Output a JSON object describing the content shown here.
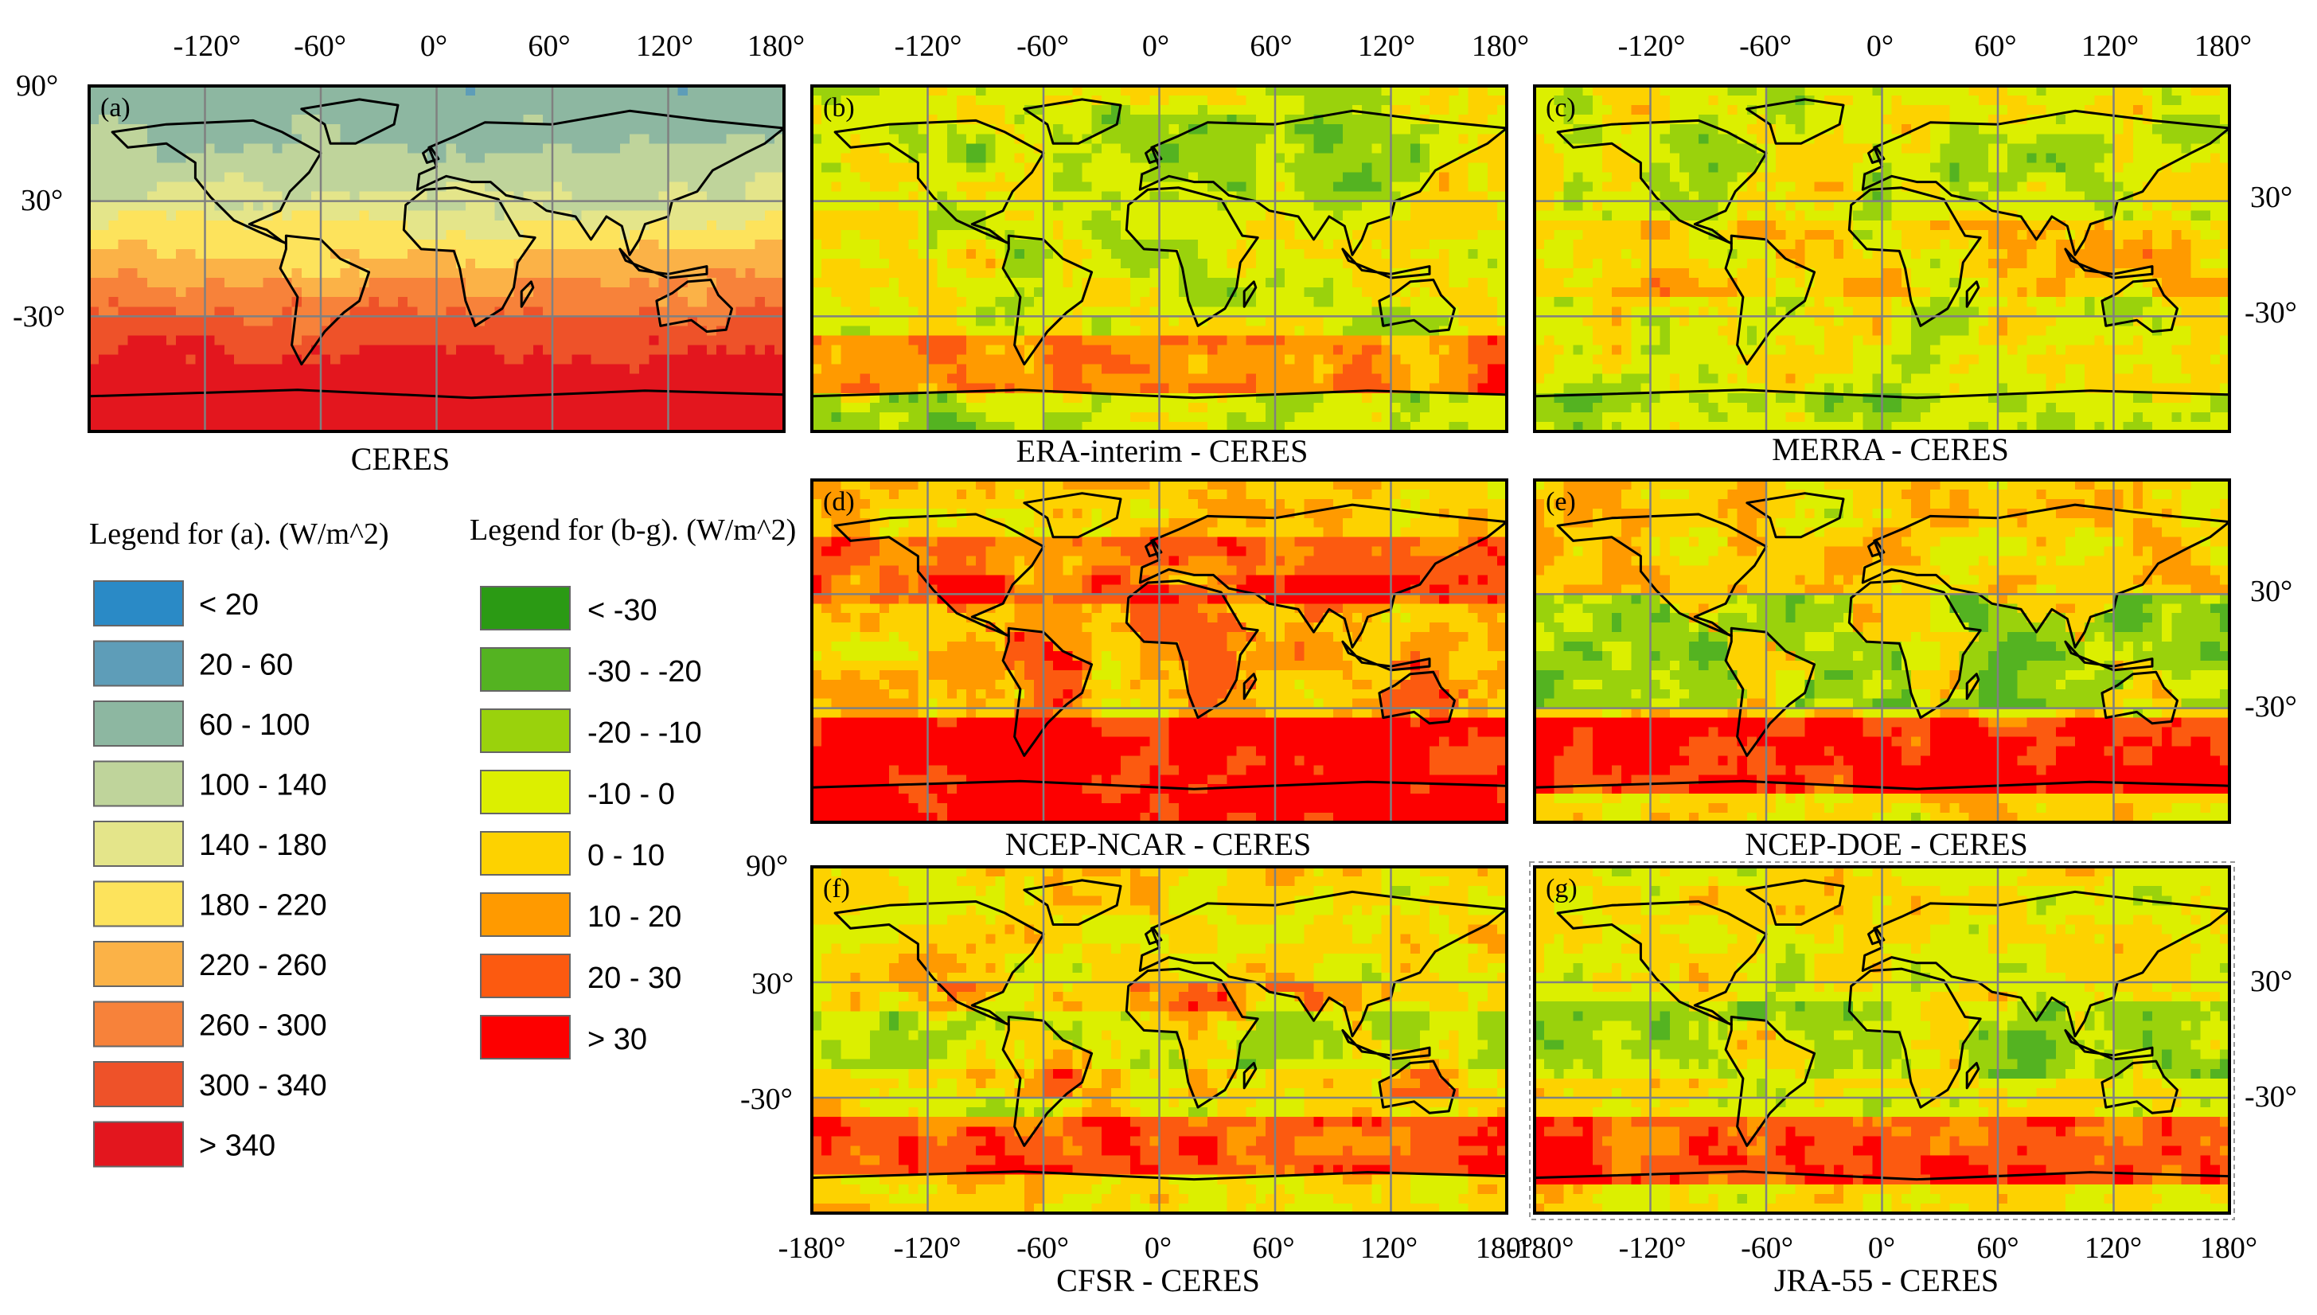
{
  "chart_data": {
    "type": "heatmap",
    "legend_a": {
      "title": "Legend for (a). (W/m^2)",
      "entries": [
        {
          "label": "< 20",
          "color": "#2a8ac6"
        },
        {
          "label": "20 - 60",
          "color": "#5e9db8"
        },
        {
          "label": "60 - 100",
          "color": "#8db7a1"
        },
        {
          "label": "100 - 140",
          "color": "#bfd49b"
        },
        {
          "label": "140 - 180",
          "color": "#e4e58a"
        },
        {
          "label": "180 - 220",
          "color": "#fde35c"
        },
        {
          "label": "220 - 260",
          "color": "#fbb247"
        },
        {
          "label": "260 - 300",
          "color": "#f7823a"
        },
        {
          "label": "300 - 340",
          "color": "#ee5229"
        },
        {
          "label": "> 340",
          "color": "#e3161e"
        }
      ]
    },
    "legend_bg": {
      "title": "Legend for (b-g). (W/m^2)",
      "entries": [
        {
          "label": "< -30",
          "color": "#2b9a14"
        },
        {
          "label": "-30 - -20",
          "color": "#54b321"
        },
        {
          "label": "-20 - -10",
          "color": "#9ad20c"
        },
        {
          "label": "-10 - 0",
          "color": "#dcef00"
        },
        {
          "label": "0 - 10",
          "color": "#fdd200"
        },
        {
          "label": "10 - 20",
          "color": "#ff9a00"
        },
        {
          "label": "20 - 30",
          "color": "#fc5a10"
        },
        {
          "label": "> 30",
          "color": "#fd0000"
        }
      ]
    },
    "panels": [
      {
        "id": "a",
        "tag": "(a)",
        "title": "CERES",
        "kind": "absolute"
      },
      {
        "id": "b",
        "tag": "(b)",
        "title": "ERA-interim - CERES",
        "kind": "diff"
      },
      {
        "id": "c",
        "tag": "(c)",
        "title": "MERRA - CERES",
        "kind": "diff"
      },
      {
        "id": "d",
        "tag": "(d)",
        "title": "NCEP-NCAR - CERES",
        "kind": "diff"
      },
      {
        "id": "e",
        "tag": "(e)",
        "title": "NCEP-DOE - CERES",
        "kind": "diff"
      },
      {
        "id": "f",
        "tag": "(f)",
        "title": "CFSR - CERES",
        "kind": "diff"
      },
      {
        "id": "g",
        "tag": "(g)",
        "title": "JRA-55 - CERES",
        "kind": "diff"
      }
    ],
    "axes": {
      "lon_ticks_top": [
        "-120°",
        "-60°",
        "0°",
        "60°",
        "120°",
        "180°"
      ],
      "lon_ticks_bottom": [
        "-180°",
        "-120°",
        "-60°",
        "0°",
        "60°",
        "120°",
        "180°"
      ],
      "lat_ticks_full": [
        "90°",
        "30°",
        "-30°"
      ],
      "lat_ticks": [
        "30°",
        "-30°"
      ]
    },
    "lon_range": [
      -180,
      180
    ],
    "lat_range": [
      -90,
      90
    ]
  }
}
